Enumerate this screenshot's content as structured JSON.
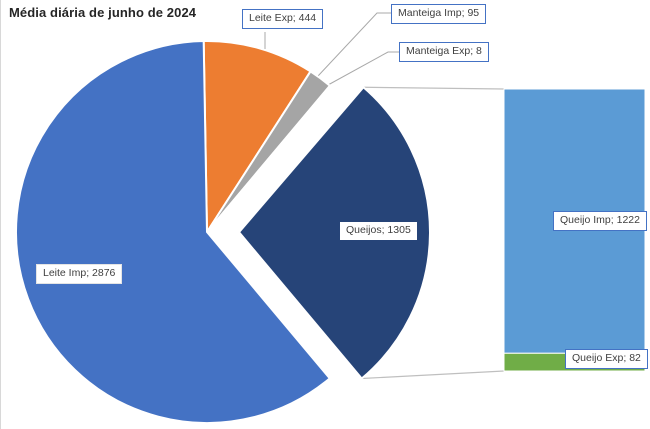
{
  "title": "Média diária de junho de 2024",
  "labels": {
    "leite_imp": "Leite Imp; 2876",
    "leite_exp": "Leite Exp; 444",
    "manteiga_imp": "Manteiga Imp; 95",
    "manteiga_exp": "Manteiga Exp; 8",
    "queijos": "Queijos; 1305",
    "queijo_imp": "Queijo Imp; 1222",
    "queijo_exp": "Queijo Exp; 82"
  },
  "chart_data": {
    "type": "pie",
    "subtype": "bar-of-pie",
    "title": "Média diária de junho de 2024",
    "legend": "none",
    "label_format": "name; value",
    "pie_slices": [
      {
        "label": "Leite Imp",
        "value": 2876,
        "color": "#4472C4"
      },
      {
        "label": "Leite Exp",
        "value": 444,
        "color": "#ED7D31"
      },
      {
        "label": "Manteiga Imp",
        "value": 95,
        "color": "#A5A5A5"
      },
      {
        "label": "Manteiga Exp",
        "value": 8,
        "color": "#D0CECE"
      },
      {
        "label": "Queijos",
        "value": 1305,
        "color": "#264478",
        "exploded": true,
        "expands_to_bar": true
      }
    ],
    "bar_slices": [
      {
        "label": "Queijo Imp",
        "value": 1222,
        "color": "#5B9BD5"
      },
      {
        "label": "Queijo Exp",
        "value": 82,
        "color": "#70AD47"
      }
    ]
  }
}
